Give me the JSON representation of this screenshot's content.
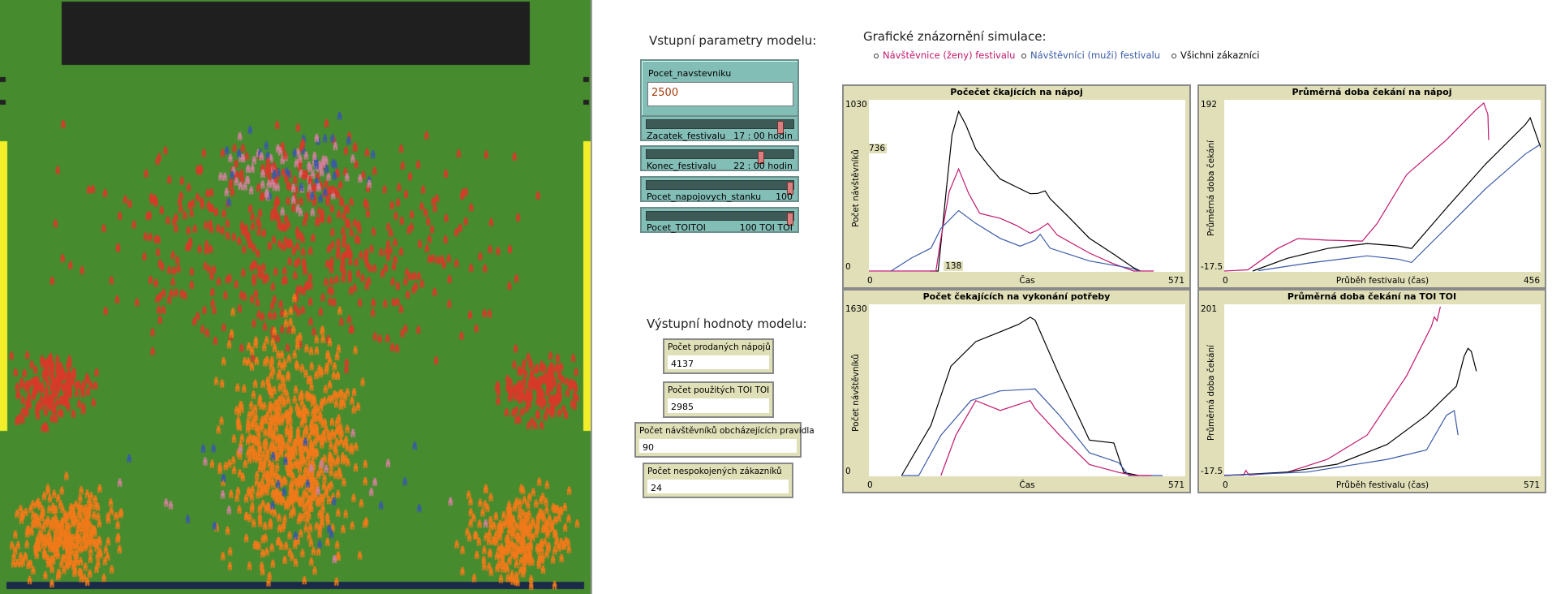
{
  "world": {
    "colors": {
      "grass": "#468c2e",
      "stage": "#1f1f1f",
      "toilet": "#f2ee2a",
      "bar": "#1c2a4a",
      "female": "#d0809a",
      "male": "#3a5aa8",
      "red": "#d83a2a",
      "orange": "#f07a1a"
    }
  },
  "inputs_title": "Vstupní parametry modelu:",
  "input": {
    "name": "Pocet_navstevniku",
    "value": "2500"
  },
  "sliders": [
    {
      "name": "Zacatek_festivalu",
      "value": "17 : 00 hodin",
      "fraction": 0.93
    },
    {
      "name": "Konec_festivalu",
      "value": "22 : 00 hodin",
      "fraction": 0.79
    },
    {
      "name": "Pocet_napojovych_stanku",
      "value": "100",
      "fraction": 1.0
    },
    {
      "name": "Pocet_TOITOI",
      "value": "100 TOI TOI",
      "fraction": 1.0
    }
  ],
  "outputs_title": "Výstupní hodnoty modelu:",
  "monitors": [
    {
      "name": "Počet prodaných nápojů",
      "value": "4137"
    },
    {
      "name": "Počet použitých TOI TOI",
      "value": "2985"
    },
    {
      "name": "Počet návštěvníků obcházejících pravidla",
      "value": "90"
    },
    {
      "name": "Počet nespokojených zákazníků",
      "value": "24"
    }
  ],
  "graphs_title": "Grafické znázornění simulace:",
  "legend": [
    {
      "label": "Návštěvnice (ženy) festivalu",
      "color": "#c0186e"
    },
    {
      "label": "Návštěvníci (muži) festivalu",
      "color": "#3a5aa8"
    },
    {
      "label": "Všichni zákazníci",
      "color": "#000000"
    }
  ],
  "chart_data": [
    {
      "type": "line",
      "title": "Počečet čkajících na nápoj",
      "xlabel": "Čas",
      "ylabel": "Počet návštěvníků",
      "xlim": [
        0,
        571
      ],
      "ylim": [
        0,
        1030
      ],
      "x_tick_labels": [
        "0",
        "571"
      ],
      "y_tick_labels": [
        "0",
        "1030"
      ],
      "highlight": {
        "x": "138",
        "y": "736"
      },
      "series": [
        {
          "name": "Všichni zákazníci",
          "color": "#000000",
          "points": [
            [
              110,
              0
            ],
            [
              125,
              0
            ],
            [
              140,
              500
            ],
            [
              150,
              820
            ],
            [
              162,
              960
            ],
            [
              175,
              880
            ],
            [
              193,
              734
            ],
            [
              215,
              640
            ],
            [
              237,
              556
            ],
            [
              265,
              510
            ],
            [
              291,
              468
            ],
            [
              305,
              470
            ],
            [
              318,
              485
            ],
            [
              327,
              438
            ],
            [
              360,
              330
            ],
            [
              398,
              201
            ],
            [
              440,
              110
            ],
            [
              478,
              24
            ],
            [
              490,
              0
            ]
          ]
        },
        {
          "name": "Návštěvnice (ženy) festivalu",
          "color": "#c0186e",
          "points": [
            [
              0,
              0
            ],
            [
              121,
              0
            ],
            [
              130,
              200
            ],
            [
              145,
              480
            ],
            [
              162,
              616
            ],
            [
              180,
              470
            ],
            [
              200,
              350
            ],
            [
              237,
              320
            ],
            [
              265,
              280
            ],
            [
              291,
              231
            ],
            [
              305,
              250
            ],
            [
              323,
              290
            ],
            [
              340,
              220
            ],
            [
              398,
              112
            ],
            [
              440,
              50
            ],
            [
              478,
              0
            ],
            [
              514,
              0
            ]
          ]
        },
        {
          "name": "Návštěvníci (muži) festivalu",
          "color": "#3a5aa8",
          "points": [
            [
              40,
              0
            ],
            [
              77,
              83
            ],
            [
              112,
              142
            ],
            [
              130,
              260
            ],
            [
              162,
              367
            ],
            [
              193,
              290
            ],
            [
              237,
              200
            ],
            [
              273,
              154
            ],
            [
              300,
              190
            ],
            [
              309,
              225
            ],
            [
              327,
              142
            ],
            [
              398,
              65
            ],
            [
              478,
              18
            ],
            [
              487,
              0
            ]
          ]
        }
      ]
    },
    {
      "type": "line",
      "title": "Průměrná doba čekání na nápoj",
      "xlabel": "Průběh festivalu (čas)",
      "ylabel": "Průměrná doba čekání",
      "xlim": [
        0,
        456
      ],
      "ylim": [
        -17.5,
        192
      ],
      "x_tick_labels": [
        "0",
        "456"
      ],
      "y_tick_labels": [
        "-17.5",
        "192"
      ],
      "series": [
        {
          "name": "Návštěvnice (ženy) festivalu",
          "color": "#c0186e",
          "points": [
            [
              0,
              -17
            ],
            [
              34,
              -15
            ],
            [
              77,
              11
            ],
            [
              106,
              23
            ],
            [
              149,
              21
            ],
            [
              199,
              20
            ],
            [
              220,
              41
            ],
            [
              263,
              101
            ],
            [
              320,
              143
            ],
            [
              363,
              180
            ],
            [
              374,
              188
            ],
            [
              380,
              174
            ],
            [
              381,
              143
            ]
          ]
        },
        {
          "name": "Všichni zákazníci",
          "color": "#000000",
          "points": [
            [
              41,
              -17
            ],
            [
              91,
              -1
            ],
            [
              149,
              11
            ],
            [
              206,
              17
            ],
            [
              250,
              14
            ],
            [
              270,
              11
            ],
            [
              320,
              60
            ],
            [
              377,
              114
            ],
            [
              434,
              162
            ],
            [
              441,
              170
            ],
            [
              456,
              134
            ]
          ]
        },
        {
          "name": "Návštěvníci (muži) festivalu",
          "color": "#3a5aa8",
          "points": [
            [
              49,
              -16
            ],
            [
              120,
              -7
            ],
            [
              206,
              2
            ],
            [
              250,
              -2
            ],
            [
              270,
              -6
            ],
            [
              320,
              36
            ],
            [
              377,
              84
            ],
            [
              434,
              126
            ],
            [
              456,
              138
            ]
          ]
        }
      ]
    },
    {
      "type": "line",
      "title": "Počet čekajících na vykonání potřeby",
      "xlabel": "Čas",
      "ylabel": "Počet návštěvníků",
      "xlim": [
        0,
        571
      ],
      "ylim": [
        0,
        1630
      ],
      "x_tick_labels": [
        "0",
        "571"
      ],
      "y_tick_labels": [
        "0",
        "1630"
      ],
      "series": [
        {
          "name": "Všichni zákazníci",
          "color": "#000000",
          "points": [
            [
              59,
              0
            ],
            [
              112,
              484
            ],
            [
              148,
              1043
            ],
            [
              193,
              1276
            ],
            [
              237,
              1369
            ],
            [
              270,
              1440
            ],
            [
              291,
              1508
            ],
            [
              300,
              1480
            ],
            [
              344,
              950
            ],
            [
              398,
              344
            ],
            [
              442,
              316
            ],
            [
              460,
              37
            ],
            [
              487,
              0
            ]
          ]
        },
        {
          "name": "Návštěvníci (muži) festivalu",
          "color": "#3a5aa8",
          "points": [
            [
              59,
              0
            ],
            [
              90,
              0
            ],
            [
              130,
              390
            ],
            [
              184,
              717
            ],
            [
              237,
              810
            ],
            [
              300,
              828
            ],
            [
              344,
              577
            ],
            [
              398,
              223
            ],
            [
              451,
              130
            ],
            [
              469,
              0
            ],
            [
              530,
              0
            ]
          ]
        },
        {
          "name": "Návštěvnice (ženy) festivalu",
          "color": "#c0186e",
          "points": [
            [
              130,
              0
            ],
            [
              157,
              390
            ],
            [
              193,
              717
            ],
            [
              237,
              624
            ],
            [
              291,
              717
            ],
            [
              300,
              642
            ],
            [
              344,
              390
            ],
            [
              398,
              112
            ],
            [
              451,
              37
            ],
            [
              478,
              0
            ],
            [
              510,
              0
            ]
          ]
        }
      ]
    },
    {
      "type": "line",
      "title": "Průměrná doba čekání na TOI TOI",
      "xlabel": "Průběh festivalu (čas)",
      "ylabel": "Průměrná doba čekání",
      "xlim": [
        0,
        571
      ],
      "ylim": [
        -17.5,
        201
      ],
      "x_tick_labels": [
        "0",
        "571"
      ],
      "y_tick_labels": [
        "-17.5",
        "201"
      ],
      "series": [
        {
          "name": "Návštěvnice (ženy) festivalu",
          "color": "#c0186e",
          "points": [
            [
              0,
              -16
            ],
            [
              35,
              -16
            ],
            [
              39,
              -10
            ],
            [
              45,
              -16
            ],
            [
              115,
              -12
            ],
            [
              186,
              4
            ],
            [
              258,
              35
            ],
            [
              329,
              110
            ],
            [
              374,
              173
            ],
            [
              379,
              185
            ],
            [
              384,
              180
            ],
            [
              390,
              198
            ]
          ]
        },
        {
          "name": "Všichni zákazníci",
          "color": "#000000",
          "points": [
            [
              0,
              -17
            ],
            [
              115,
              -12
            ],
            [
              204,
              -2
            ],
            [
              294,
              23
            ],
            [
              365,
              60
            ],
            [
              419,
              97
            ],
            [
              433,
              135
            ],
            [
              440,
              145
            ],
            [
              446,
              141
            ],
            [
              455,
              116
            ]
          ]
        },
        {
          "name": "Návštěvníci (muži) festivalu",
          "color": "#3a5aa8",
          "points": [
            [
              0,
              -17
            ],
            [
              150,
              -12
            ],
            [
              294,
              4
            ],
            [
              365,
              16
            ],
            [
              401,
              60
            ],
            [
              415,
              66
            ],
            [
              422,
              35
            ]
          ]
        }
      ]
    }
  ]
}
